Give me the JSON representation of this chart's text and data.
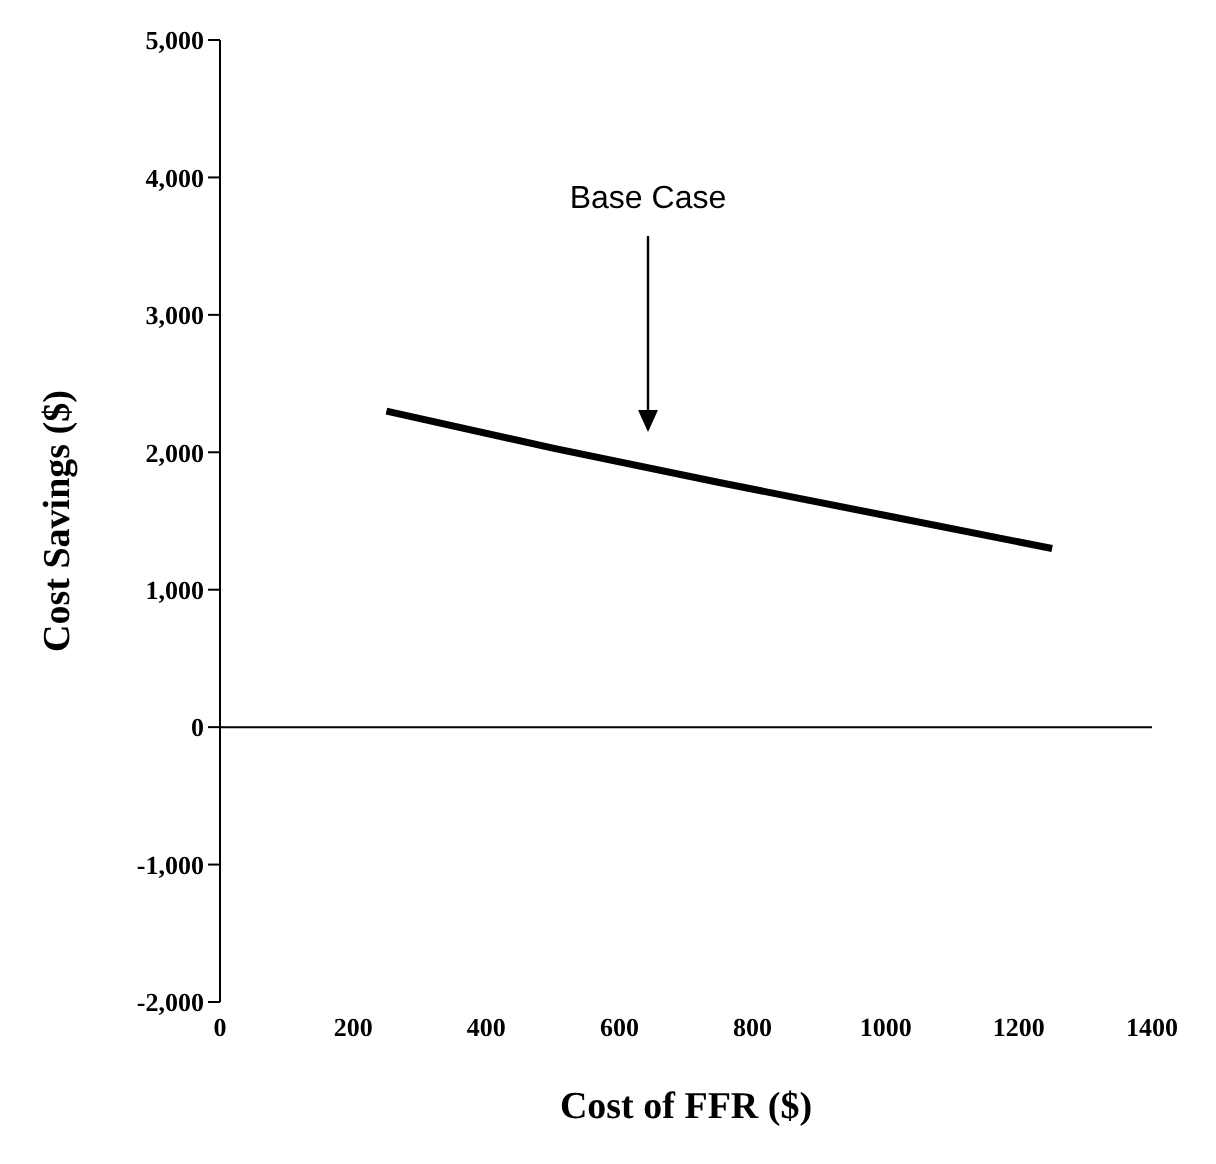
{
  "chart_data": {
    "type": "line",
    "xlabel": "Cost of FFR ($)",
    "ylabel": "Cost Savings ($)",
    "x": [
      250,
      500,
      750,
      1000,
      1250
    ],
    "series": [
      {
        "color": "#000000",
        "values": [
          2300,
          2030,
          1780,
          1540,
          1300
        ]
      }
    ],
    "xlim": [
      0,
      1400
    ],
    "xticks": [
      0,
      200,
      400,
      600,
      800,
      1000,
      1200,
      1400
    ],
    "ylim": [
      -2000,
      5000
    ],
    "yticks": [
      {
        "value": -2000,
        "label": "-2,000"
      },
      {
        "value": -1000,
        "label": "-1,000"
      },
      0,
      {
        "value": 1000,
        "label": "1,000"
      },
      {
        "value": 2000,
        "label": "2,000"
      },
      {
        "value": 3000,
        "label": "3,000"
      },
      {
        "value": 4000,
        "label": "4,000"
      },
      {
        "value": 5000,
        "label": "5,000"
      }
    ],
    "ref_lines": [
      {
        "axis": "y",
        "value": 0,
        "color": "#000000"
      }
    ],
    "annotations": [
      "Base Case"
    ],
    "grid": false,
    "legend": false,
    "marker": "none",
    "line_style": "solid"
  }
}
